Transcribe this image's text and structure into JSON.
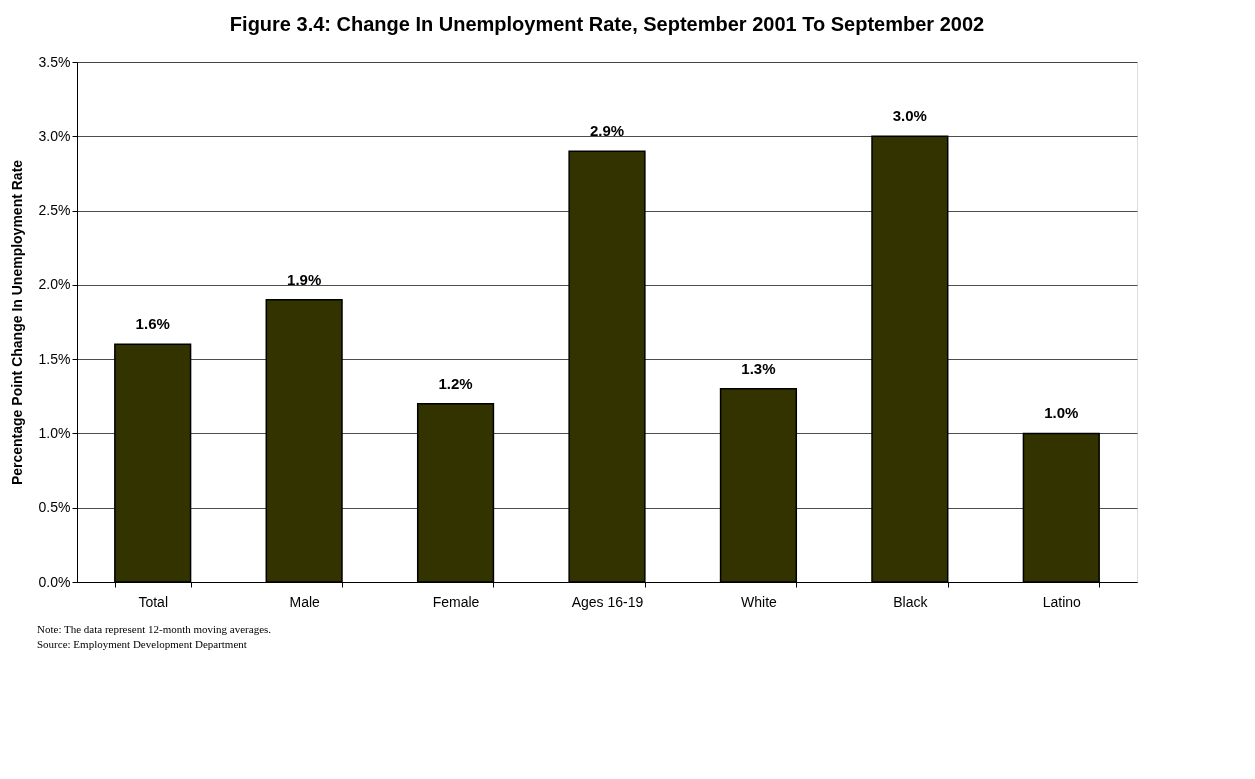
{
  "chart_data": {
    "type": "bar",
    "title": "Figure 3.4: Change In Unemployment Rate, September 2001 To September 2002",
    "ylabel": "Percentage Point Change In Unemployment Rate",
    "categories": [
      "Total",
      "Male",
      "Female",
      "Ages 16-19",
      "White",
      "Black",
      "Latino"
    ],
    "values": [
      1.6,
      1.9,
      1.2,
      2.9,
      1.3,
      3.0,
      1.0
    ],
    "value_labels": [
      "1.6%",
      "1.9%",
      "1.2%",
      "2.9%",
      "1.3%",
      "3.0%",
      "1.0%"
    ],
    "color": "#333300",
    "ylim": [
      0,
      3.5
    ],
    "yticks": [
      {
        "value": 0,
        "label": "0.0%"
      },
      {
        "value": 0.5,
        "label": "0.5%"
      },
      {
        "value": 1.0,
        "label": "1.0%"
      },
      {
        "value": 1.5,
        "label": "1.5%"
      },
      {
        "value": 2.0,
        "label": "2.0%"
      },
      {
        "value": 2.5,
        "label": "2.5%"
      },
      {
        "value": 3.0,
        "label": "3.0%"
      },
      {
        "value": 3.5,
        "label": "3.5%"
      }
    ],
    "grid": "y",
    "annotations": [
      "Note: The data represent 12-month moving averages.",
      "Source: Employment Development Department"
    ]
  }
}
